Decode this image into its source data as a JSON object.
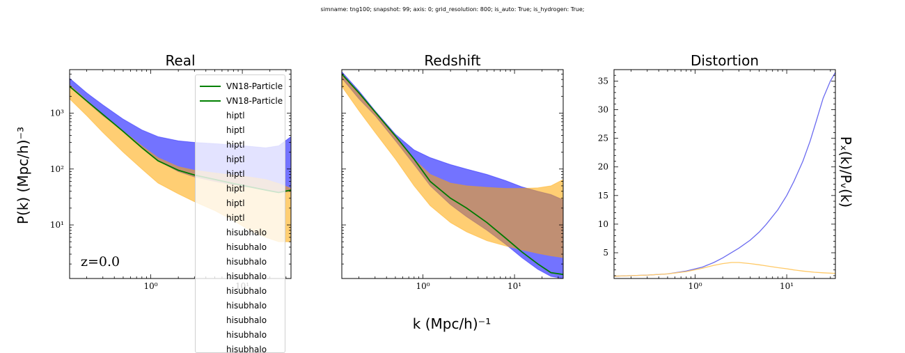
{
  "suptitle": "simname: tng100; snapshot: 99; axis: 0; grid_resolution: 800; is_auto: True; is_hydrogen: True;",
  "shared_xlabel": "k (Mpc/h)⁻¹",
  "colors": {
    "blue": "#0000ff",
    "orange": "#ffa500",
    "green": "#007a00",
    "distortion_blue": "#6b6bf0",
    "distortion_orange": "#ffc966"
  },
  "legend": {
    "entries": [
      {
        "label": "VN18-Particle",
        "kind": "line",
        "color": "#008000"
      },
      {
        "label": "VN18-Particle",
        "kind": "line",
        "color": "#008000"
      },
      {
        "label": "hiptl",
        "kind": "none"
      },
      {
        "label": "hiptl",
        "kind": "none"
      },
      {
        "label": "hiptl",
        "kind": "none"
      },
      {
        "label": "hiptl",
        "kind": "none"
      },
      {
        "label": "hiptl",
        "kind": "none"
      },
      {
        "label": "hiptl",
        "kind": "none"
      },
      {
        "label": "hiptl",
        "kind": "none"
      },
      {
        "label": "hiptl",
        "kind": "none"
      },
      {
        "label": "hisubhalo",
        "kind": "none"
      },
      {
        "label": "hisubhalo",
        "kind": "none"
      },
      {
        "label": "hisubhalo",
        "kind": "none"
      },
      {
        "label": "hisubhalo",
        "kind": "none"
      },
      {
        "label": "hisubhalo",
        "kind": "none"
      },
      {
        "label": "hisubhalo",
        "kind": "none"
      },
      {
        "label": "hisubhalo",
        "kind": "none"
      },
      {
        "label": "hisubhalo",
        "kind": "none"
      },
      {
        "label": "hisubhalo",
        "kind": "none"
      }
    ]
  },
  "chart_data": [
    {
      "type": "area",
      "title": "Real",
      "xlabel": "",
      "ylabel": "P(k) (Mpc/h)⁻³",
      "xscale": "log",
      "yscale": "log",
      "xlim": [
        0.13,
        34
      ],
      "ylim": [
        1.1,
        6000
      ],
      "xticks": [
        {
          "value": 1,
          "label": "10⁰"
        },
        {
          "value": 10,
          "label": "10¹"
        }
      ],
      "yticks": [
        {
          "value": 10,
          "label": "10¹"
        },
        {
          "value": 100,
          "label": "10²"
        },
        {
          "value": 1000,
          "label": "10³"
        }
      ],
      "annotation": "z=0.0",
      "bands": [
        {
          "color": "#0000ff",
          "opacity": 0.55,
          "x": [
            0.13,
            0.2,
            0.3,
            0.5,
            0.8,
            1.2,
            2,
            3,
            5,
            8,
            12,
            18,
            25,
            34
          ],
          "upper": [
            4200,
            2300,
            1400,
            780,
            500,
            380,
            320,
            300,
            285,
            270,
            255,
            240,
            260,
            380
          ],
          "lower": [
            3000,
            1600,
            900,
            480,
            240,
            140,
            90,
            72,
            60,
            52,
            47,
            42,
            38,
            40
          ]
        },
        {
          "color": "#ffa500",
          "opacity": 0.55,
          "x": [
            0.13,
            0.2,
            0.3,
            0.5,
            0.8,
            1.2,
            2,
            3,
            5,
            8,
            12,
            18,
            25,
            34
          ],
          "upper": [
            3200,
            1700,
            950,
            480,
            260,
            160,
            110,
            95,
            85,
            78,
            72,
            65,
            55,
            45
          ],
          "lower": [
            1800,
            900,
            450,
            200,
            100,
            56,
            36,
            26,
            18,
            12,
            8,
            6,
            5,
            5
          ]
        }
      ],
      "lines": [
        {
          "color": "#007a00",
          "x": [
            0.13,
            0.2,
            0.3,
            0.5,
            0.8,
            1.2,
            2,
            3,
            5,
            8,
            12,
            18,
            25,
            34
          ],
          "y": [
            3000,
            1650,
            950,
            470,
            240,
            140,
            95,
            78,
            65,
            55,
            48,
            42,
            38,
            42
          ]
        }
      ]
    },
    {
      "type": "area",
      "title": "Redshift",
      "xlabel": "",
      "ylabel": "",
      "xscale": "log",
      "yscale": "log",
      "xlim": [
        0.13,
        34
      ],
      "ylim": [
        1.1,
        6000
      ],
      "xticks": [
        {
          "value": 1,
          "label": "10⁰"
        },
        {
          "value": 10,
          "label": "10¹"
        }
      ],
      "yticks": [],
      "bands": [
        {
          "color": "#0000ff",
          "opacity": 0.55,
          "x": [
            0.13,
            0.2,
            0.3,
            0.5,
            0.8,
            1.2,
            2,
            3,
            5,
            8,
            12,
            18,
            25,
            34
          ],
          "upper": [
            5500,
            2500,
            1100,
            420,
            220,
            160,
            120,
            100,
            80,
            62,
            48,
            40,
            35,
            28
          ],
          "lower": [
            4200,
            1800,
            900,
            320,
            120,
            50,
            23,
            14,
            8,
            4.5,
            2.6,
            1.6,
            1.2,
            1.1
          ]
        },
        {
          "color": "#ffa500",
          "opacity": 0.55,
          "x": [
            0.13,
            0.2,
            0.3,
            0.5,
            0.8,
            1.2,
            2,
            3,
            5,
            8,
            12,
            18,
            25,
            34
          ],
          "upper": [
            5000,
            2200,
            1000,
            380,
            150,
            80,
            56,
            50,
            47,
            45,
            45,
            46,
            50,
            65
          ],
          "lower": [
            3000,
            1100,
            450,
            150,
            50,
            22,
            11,
            7.5,
            5.2,
            4.2,
            3.6,
            3.1,
            2.8,
            2.6
          ]
        }
      ],
      "lines": [
        {
          "color": "#007a00",
          "x": [
            0.13,
            0.2,
            0.3,
            0.5,
            0.8,
            1.2,
            2,
            3,
            5,
            8,
            12,
            18,
            25,
            34
          ],
          "y": [
            5000,
            2300,
            1050,
            390,
            150,
            60,
            30,
            20,
            11,
            5.8,
            3.3,
            2.0,
            1.4,
            1.3
          ]
        }
      ]
    },
    {
      "type": "line",
      "title": "Distortion",
      "xlabel": "",
      "ylabel": "Pₓ(k)/Pᵥ(k)",
      "ylabel_side": "right",
      "xscale": "log",
      "yscale": "linear",
      "xlim": [
        0.13,
        34
      ],
      "ylim": [
        0.5,
        37
      ],
      "xticks": [
        {
          "value": 1,
          "label": "10⁰"
        },
        {
          "value": 10,
          "label": "10¹"
        }
      ],
      "yticks": [
        {
          "value": 5,
          "label": "5"
        },
        {
          "value": 10,
          "label": "10"
        },
        {
          "value": 15,
          "label": "15"
        },
        {
          "value": 20,
          "label": "20"
        },
        {
          "value": 25,
          "label": "25"
        },
        {
          "value": 30,
          "label": "30"
        },
        {
          "value": 35,
          "label": "35"
        }
      ],
      "series": [
        {
          "color": "#6b6bf0",
          "x": [
            0.13,
            0.2,
            0.3,
            0.5,
            0.8,
            1.2,
            1.6,
            2,
            3,
            4,
            5,
            6,
            8,
            10,
            12,
            15,
            18,
            21,
            25,
            30,
            34
          ],
          "y": [
            0.9,
            1.0,
            1.1,
            1.3,
            1.8,
            2.5,
            3.3,
            4.1,
            5.8,
            7.2,
            8.6,
            10.0,
            12.5,
            15.0,
            17.5,
            21.0,
            24.5,
            28.0,
            32.0,
            35.0,
            36.5
          ]
        },
        {
          "color": "#ffc966",
          "x": [
            0.13,
            0.2,
            0.3,
            0.5,
            0.8,
            1.2,
            1.6,
            2,
            2.5,
            3,
            4,
            5,
            6,
            8,
            10,
            12,
            15,
            20,
            25,
            34
          ],
          "y": [
            0.9,
            1.0,
            1.1,
            1.3,
            1.7,
            2.3,
            2.8,
            3.1,
            3.3,
            3.3,
            3.1,
            2.9,
            2.7,
            2.4,
            2.2,
            2.0,
            1.8,
            1.6,
            1.5,
            1.4
          ]
        }
      ]
    }
  ]
}
